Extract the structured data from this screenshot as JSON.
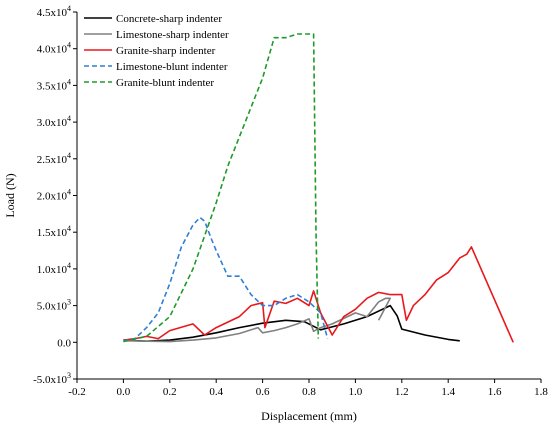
{
  "chart_data": {
    "type": "line",
    "xlabel": "Displacement (mm)",
    "ylabel": "Load (N)",
    "xlim": [
      -0.2,
      1.8
    ],
    "ylim": [
      -5000,
      45000
    ],
    "x_ticks": [
      -0.2,
      0.0,
      0.2,
      0.4,
      0.6,
      0.8,
      1.0,
      1.2,
      1.4,
      1.6,
      1.8
    ],
    "x_tick_labels": [
      "-0.2",
      "0.0",
      "0.2",
      "0.4",
      "0.6",
      "0.8",
      "1.0",
      "1.2",
      "1.4",
      "1.6",
      "1.8"
    ],
    "y_ticks": [
      -5000,
      0,
      5000,
      10000,
      15000,
      20000,
      25000,
      30000,
      35000,
      40000,
      45000
    ],
    "y_tick_mantissa": [
      "-5.0x10",
      "0.0",
      "5.0x10",
      "1.0x10",
      "1.5x10",
      "2.0x10",
      "2.5x10",
      "3.0x10",
      "3.5x10",
      "4.0x10",
      "4.5x10"
    ],
    "y_tick_exponent": [
      "3",
      "",
      "3",
      "4",
      "4",
      "4",
      "4",
      "4",
      "4",
      "4",
      "4"
    ],
    "grid": false,
    "legend_position": "top-left",
    "series": [
      {
        "name": "Concrete-sharp indenter",
        "color": "#000000",
        "dash": "solid",
        "x": [
          0.0,
          0.1,
          0.2,
          0.3,
          0.4,
          0.5,
          0.6,
          0.7,
          0.78,
          0.85,
          0.95,
          1.05,
          1.15,
          1.18,
          1.2,
          1.3,
          1.4,
          1.45
        ],
        "y": [
          300,
          150,
          300,
          700,
          1300,
          2000,
          2600,
          3000,
          2800,
          1700,
          2500,
          3500,
          5000,
          3600,
          1800,
          1000,
          400,
          200
        ]
      },
      {
        "name": "Limestone-sharp indenter",
        "color": "#808080",
        "dash": "solid",
        "x": [
          0.0,
          0.2,
          0.3,
          0.4,
          0.5,
          0.58,
          0.6,
          0.65,
          0.7,
          0.75,
          0.8,
          0.82,
          0.85,
          0.9,
          1.0,
          1.05,
          1.1,
          1.13,
          1.15,
          1.1
        ],
        "y": [
          200,
          100,
          300,
          600,
          1200,
          2000,
          1300,
          1600,
          2000,
          2500,
          3200,
          1500,
          2000,
          2500,
          4000,
          3500,
          5500,
          6000,
          6000,
          3000
        ]
      },
      {
        "name": "Granite-sharp indenter",
        "color": "#e8191c",
        "dash": "solid",
        "x": [
          0.0,
          0.05,
          0.1,
          0.15,
          0.2,
          0.3,
          0.35,
          0.4,
          0.5,
          0.55,
          0.6,
          0.61,
          0.65,
          0.7,
          0.75,
          0.8,
          0.82,
          0.85,
          0.9,
          0.95,
          1.0,
          1.05,
          1.1,
          1.15,
          1.2,
          1.22,
          1.25,
          1.3,
          1.35,
          1.4,
          1.45,
          1.48,
          1.5,
          1.68
        ],
        "y": [
          300,
          500,
          800,
          500,
          1600,
          2500,
          1000,
          2000,
          3500,
          5000,
          5400,
          2000,
          5600,
          5300,
          6000,
          5000,
          7000,
          4000,
          1000,
          3500,
          4500,
          6000,
          6800,
          6500,
          6500,
          3000,
          5000,
          6500,
          8500,
          9500,
          11500,
          12000,
          13000,
          0
        ]
      },
      {
        "name": "Limestone-blunt indenter",
        "color": "#2e7fd6",
        "dash": "dashed",
        "x": [
          0.0,
          0.05,
          0.1,
          0.15,
          0.2,
          0.25,
          0.3,
          0.33,
          0.35,
          0.38,
          0.4,
          0.45,
          0.5,
          0.55,
          0.6,
          0.65,
          0.7,
          0.75,
          0.8,
          0.85,
          0.88
        ],
        "y": [
          200,
          500,
          2000,
          4000,
          8000,
          13000,
          16000,
          17000,
          16500,
          14000,
          12500,
          9000,
          9000,
          6500,
          5000,
          5000,
          6000,
          6500,
          5500,
          4000,
          500
        ]
      },
      {
        "name": "Granite-blunt indenter",
        "color": "#1f9a2a",
        "dash": "dashed",
        "x": [
          0.0,
          0.1,
          0.2,
          0.3,
          0.4,
          0.45,
          0.5,
          0.55,
          0.6,
          0.65,
          0.7,
          0.75,
          0.8,
          0.82,
          0.83,
          0.84
        ],
        "y": [
          100,
          800,
          3500,
          10000,
          19000,
          24000,
          28000,
          32000,
          36000,
          41500,
          41500,
          42000,
          42000,
          42000,
          15000,
          500
        ]
      }
    ]
  }
}
